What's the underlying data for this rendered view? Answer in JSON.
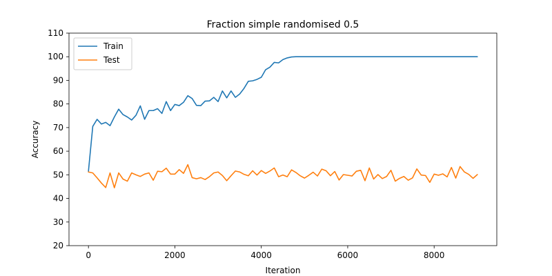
{
  "chart_data": {
    "type": "line",
    "title": "Fraction simple randomised 0.5",
    "xlabel": "Iteration",
    "ylabel": "Accuracy",
    "xlim": [
      -450,
      9450
    ],
    "ylim": [
      20,
      110
    ],
    "xticks": [
      0,
      2000,
      4000,
      6000,
      8000
    ],
    "yticks": [
      20,
      30,
      40,
      50,
      60,
      70,
      80,
      90,
      100,
      110
    ],
    "grid": false,
    "legend_position": "top-left",
    "series": [
      {
        "name": "Train",
        "color": "#1f77b4",
        "x": [
          0,
          100,
          200,
          300,
          400,
          500,
          600,
          700,
          800,
          900,
          1000,
          1100,
          1200,
          1300,
          1400,
          1500,
          1600,
          1700,
          1800,
          1900,
          2000,
          2100,
          2200,
          2300,
          2400,
          2500,
          2600,
          2700,
          2800,
          2900,
          3000,
          3100,
          3200,
          3300,
          3400,
          3500,
          3600,
          3700,
          3800,
          3900,
          4000,
          4100,
          4200,
          4300,
          4400,
          4500,
          4600,
          4700,
          4800,
          4900,
          5000,
          5500,
          6000,
          6500,
          7000,
          7500,
          8000,
          8500,
          9000
        ],
        "y": [
          51.5,
          70.5,
          73.5,
          71.5,
          72.2,
          70.8,
          74.5,
          77.8,
          75.5,
          74.5,
          73.2,
          75.2,
          79.2,
          73.5,
          77.2,
          77.2,
          78.0,
          76.0,
          81.0,
          77.2,
          79.8,
          79.3,
          80.7,
          83.5,
          82.3,
          79.4,
          79.3,
          81.2,
          81.3,
          82.8,
          81.0,
          85.5,
          82.6,
          85.5,
          82.8,
          84.2,
          86.6,
          89.6,
          89.8,
          90.4,
          91.3,
          94.5,
          95.6,
          97.6,
          97.4,
          98.8,
          99.5,
          99.9,
          100,
          100,
          100,
          100,
          100,
          100,
          100,
          100,
          100,
          100,
          100
        ]
      },
      {
        "name": "Test",
        "color": "#ff7f0e",
        "x": [
          0,
          100,
          200,
          300,
          400,
          500,
          600,
          700,
          800,
          900,
          1000,
          1100,
          1200,
          1300,
          1400,
          1500,
          1600,
          1700,
          1800,
          1900,
          2000,
          2100,
          2200,
          2300,
          2400,
          2500,
          2600,
          2700,
          2800,
          2900,
          3000,
          3100,
          3200,
          3300,
          3400,
          3500,
          3600,
          3700,
          3800,
          3900,
          4000,
          4100,
          4200,
          4300,
          4400,
          4500,
          4600,
          4700,
          4800,
          4900,
          5000,
          5100,
          5200,
          5300,
          5400,
          5500,
          5600,
          5700,
          5800,
          5900,
          6000,
          6100,
          6200,
          6300,
          6400,
          6500,
          6600,
          6700,
          6800,
          6900,
          7000,
          7100,
          7200,
          7300,
          7400,
          7500,
          7600,
          7700,
          7800,
          7900,
          8000,
          8100,
          8200,
          8300,
          8400,
          8500,
          8600,
          8700,
          8800,
          8900,
          9000
        ],
        "y": [
          51.2,
          50.8,
          48.7,
          46.5,
          44.6,
          50.8,
          44.5,
          50.8,
          48.2,
          47.3,
          50.8,
          50.0,
          49.3,
          50.3,
          50.8,
          47.7,
          51.5,
          51.3,
          52.8,
          50.3,
          50.3,
          52.2,
          50.6,
          54.3,
          48.8,
          48.3,
          48.8,
          48.0,
          49.2,
          50.8,
          51.2,
          49.7,
          47.5,
          49.6,
          51.6,
          51.2,
          50.2,
          49.6,
          51.7,
          49.9,
          51.8,
          50.6,
          51.6,
          52.9,
          49.2,
          49.9,
          49.2,
          52.1,
          51.0,
          49.6,
          48.6,
          49.8,
          51.1,
          49.5,
          52.4,
          51.7,
          49.6,
          51.4,
          47.8,
          50.1,
          49.8,
          49.5,
          51.5,
          51.9,
          47.5,
          52.9,
          48.2,
          50.1,
          48.4,
          49.3,
          51.9,
          47.3,
          48.5,
          49.3,
          47.7,
          48.7,
          52.5,
          49.9,
          49.7,
          46.8,
          50.3,
          49.8,
          50.4,
          49.1,
          53.1,
          48.6,
          53.5,
          51.2,
          50.2,
          48.5,
          50.1
        ]
      }
    ]
  }
}
